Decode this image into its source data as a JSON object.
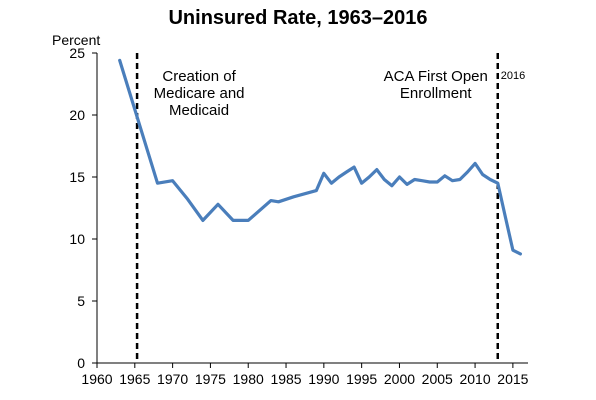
{
  "chart_data": {
    "type": "line",
    "title": "Uninsured Rate, 1963–2016",
    "ylabel": "Percent",
    "xlabel": "",
    "xlim": [
      1960,
      2017
    ],
    "ylim": [
      0,
      25
    ],
    "x_ticks": [
      1960,
      1965,
      1970,
      1975,
      1980,
      1985,
      1990,
      1995,
      2000,
      2005,
      2010,
      2015
    ],
    "y_ticks": [
      0,
      5,
      10,
      15,
      20,
      25
    ],
    "grid": false,
    "line_color": "#4a7ebb",
    "series": [
      {
        "x": [
          1963,
          1968,
          1970,
          1972,
          1974,
          1976,
          1978,
          1980,
          1983,
          1984,
          1986,
          1989,
          1990,
          1991,
          1992,
          1993,
          1994,
          1995,
          1996,
          1997,
          1998,
          1999,
          2000,
          2001,
          2002,
          2003,
          2004,
          2005,
          2006,
          2007,
          2008,
          2009,
          2010,
          2011,
          2012,
          2013,
          2014,
          2015,
          2016
        ],
        "y": [
          24.4,
          14.5,
          14.7,
          13.2,
          11.5,
          12.8,
          11.5,
          11.5,
          13.1,
          13.0,
          13.4,
          13.9,
          15.3,
          14.5,
          15.0,
          15.4,
          15.8,
          14.5,
          15.0,
          15.6,
          14.8,
          14.3,
          15.0,
          14.4,
          14.8,
          14.7,
          14.6,
          14.6,
          15.1,
          14.7,
          14.8,
          15.4,
          16.1,
          15.2,
          14.8,
          14.5,
          11.8,
          9.1,
          8.8
        ]
      }
    ],
    "reference_lines": [
      {
        "x": 1965.3,
        "label_lines": [
          "Creation of",
          "Medicare and",
          "Medicaid"
        ]
      },
      {
        "x": 2013.0,
        "label_lines": [
          "ACA First Open",
          "Enrollment"
        ],
        "secondary_label": "2016"
      }
    ]
  }
}
